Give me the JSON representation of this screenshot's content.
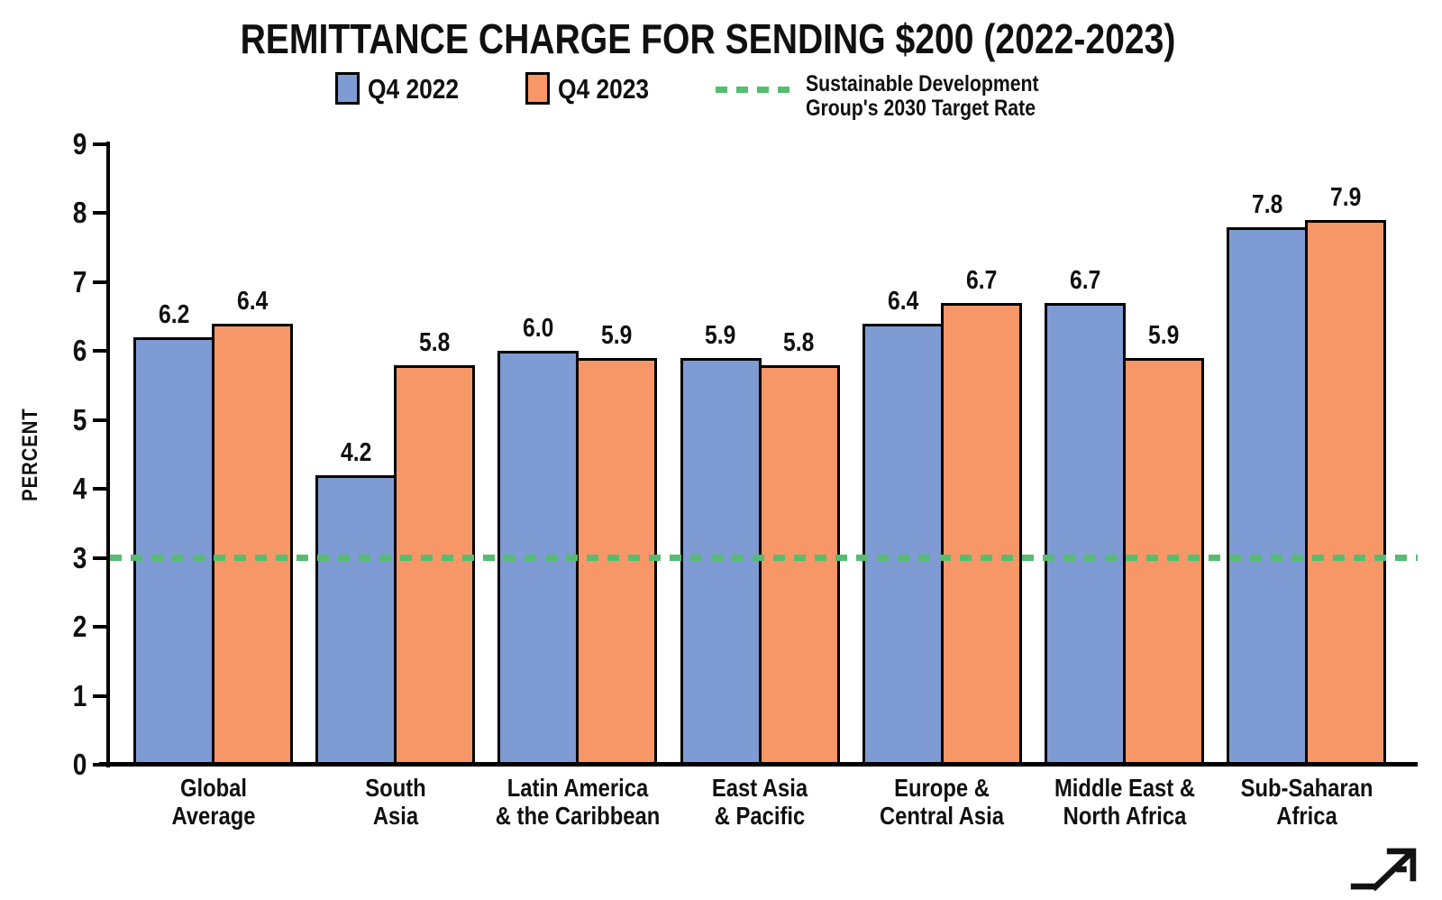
{
  "chart": {
    "title": "REMITTANCE CHARGE FOR SENDING $200 (2022-2023)",
    "ylabel": "PERCENT"
  },
  "legend": {
    "target_label_lines": [
      "Sustainable Development",
      "Group's 2030 Target Rate"
    ]
  },
  "chart_data": {
    "type": "bar",
    "title": "REMITTANCE CHARGE FOR SENDING $200 (2022-2023)",
    "xlabel": "",
    "ylabel": "PERCENT",
    "ylim": [
      0,
      9
    ],
    "yticks": [
      0,
      1,
      2,
      3,
      4,
      5,
      6,
      7,
      8,
      9
    ],
    "grid": false,
    "legend_position": "top",
    "categories": [
      "Global Average",
      "South Asia",
      "Latin America & the Caribbean",
      "East Asia & Pacific",
      "Europe & Central Asia",
      "Middle East & North Africa",
      "Sub-Saharan Africa"
    ],
    "category_label_lines": [
      [
        "Global",
        "Average"
      ],
      [
        "South",
        "Asia"
      ],
      [
        "Latin America",
        "& the Caribbean"
      ],
      [
        "East Asia",
        "& Pacific"
      ],
      [
        "Europe &",
        "Central Asia"
      ],
      [
        "Middle East &",
        "North Africa"
      ],
      [
        "Sub-Saharan",
        "Africa"
      ]
    ],
    "series": [
      {
        "name": "Q4 2022",
        "color": "#7E9BD3",
        "values": [
          6.2,
          4.2,
          6.0,
          5.9,
          6.4,
          6.7,
          7.8
        ]
      },
      {
        "name": "Q4 2023",
        "color": "#F79768",
        "values": [
          6.4,
          5.8,
          5.9,
          5.8,
          6.7,
          5.9,
          7.9
        ]
      }
    ],
    "value_label_decimals": 1,
    "bar_outline_color": "#000000",
    "axis_color": "#000000",
    "target_line": {
      "value": 3,
      "color": "#55BC70",
      "style": "dashed",
      "label": "Sustainable Development Group's 2030 Target Rate"
    }
  }
}
